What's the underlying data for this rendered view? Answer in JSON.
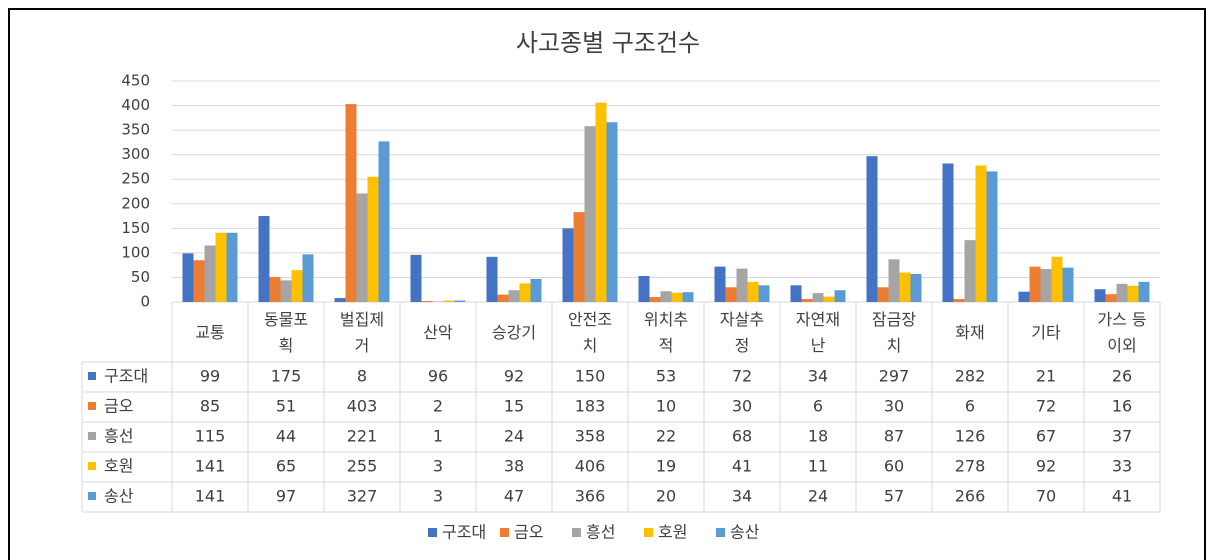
{
  "chart_data": {
    "type": "bar",
    "title": "사고종별 구조건수",
    "categories": [
      "교통",
      "동물포\n획",
      "벌집제\n거",
      "산악",
      "승강기",
      "안전조\n치",
      "위치추\n적",
      "자살추\n정",
      "자연재\n난",
      "잠금장\n치",
      "화재",
      "기타",
      "가스 등\n이외"
    ],
    "series": [
      {
        "name": "구조대",
        "color": "#4472c4",
        "values": [
          99,
          175,
          8,
          96,
          92,
          150,
          53,
          72,
          34,
          297,
          282,
          21,
          26
        ]
      },
      {
        "name": "금오",
        "color": "#ed7d31",
        "values": [
          85,
          51,
          403,
          2,
          15,
          183,
          10,
          30,
          6,
          30,
          6,
          72,
          16
        ]
      },
      {
        "name": "흥선",
        "color": "#a5a5a5",
        "values": [
          115,
          44,
          221,
          1,
          24,
          358,
          22,
          68,
          18,
          87,
          126,
          67,
          37
        ]
      },
      {
        "name": "호원",
        "color": "#ffc000",
        "values": [
          141,
          65,
          255,
          3,
          38,
          406,
          19,
          41,
          11,
          60,
          278,
          92,
          33
        ]
      },
      {
        "name": "송산",
        "color": "#5b9bd5",
        "values": [
          141,
          97,
          327,
          3,
          47,
          366,
          20,
          34,
          24,
          57,
          266,
          70,
          41
        ]
      }
    ],
    "ylim": [
      0,
      450
    ],
    "yticks": [
      0,
      50,
      100,
      150,
      200,
      250,
      300,
      350,
      400,
      450
    ],
    "grid": true,
    "legend": "bottom"
  }
}
